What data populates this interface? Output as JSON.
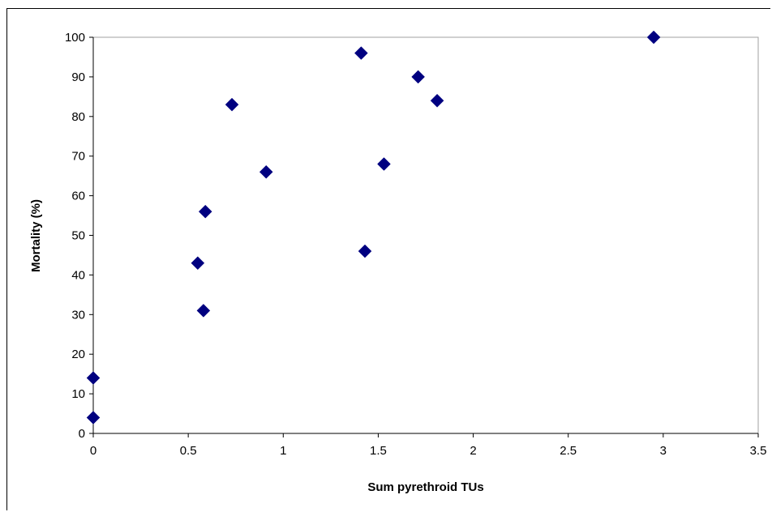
{
  "chart_data": {
    "type": "scatter",
    "title": "",
    "xlabel": "Sum pyrethroid TUs",
    "ylabel": "Mortality (%)",
    "xlim": [
      0,
      3.5
    ],
    "ylim": [
      0,
      100
    ],
    "x_ticks": [
      "0",
      "0.5",
      "1",
      "1.5",
      "2",
      "2.5",
      "3",
      "3.5"
    ],
    "y_ticks": [
      "0",
      "10",
      "20",
      "30",
      "40",
      "50",
      "60",
      "70",
      "80",
      "90",
      "100"
    ],
    "grid": false,
    "legend": "none",
    "marker_color": "#000080",
    "marker_shape": "diamond",
    "points": [
      {
        "x": 0.0,
        "y": 4
      },
      {
        "x": 0.0,
        "y": 14
      },
      {
        "x": 0.55,
        "y": 43
      },
      {
        "x": 0.58,
        "y": 31
      },
      {
        "x": 0.59,
        "y": 56
      },
      {
        "x": 0.73,
        "y": 83
      },
      {
        "x": 0.91,
        "y": 66
      },
      {
        "x": 1.41,
        "y": 96
      },
      {
        "x": 1.43,
        "y": 46
      },
      {
        "x": 1.53,
        "y": 68
      },
      {
        "x": 1.71,
        "y": 90
      },
      {
        "x": 1.81,
        "y": 84
      },
      {
        "x": 2.95,
        "y": 100
      }
    ]
  }
}
